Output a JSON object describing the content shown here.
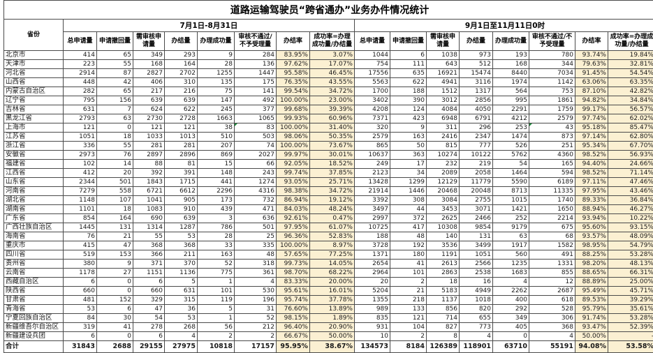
{
  "title": "道路运输驾驶员“跨省通办”业务办件情况统计",
  "province_header": "省份",
  "groups": [
    {
      "label": "7月1日-8月31日"
    },
    {
      "label": "9月1日至11月11日0时"
    }
  ],
  "sub_headers": [
    "总申请量",
    "申请撤回量",
    "需审核申请量",
    "办结量",
    "办理成功量",
    "审核不通过/不予受理量",
    "办结率",
    "成功率=办理成功量/办结量"
  ],
  "rows": [
    {
      "province": "北京市",
      "p1": [
        "414",
        "65",
        "349",
        "293",
        "9",
        "284",
        "83.95%",
        "3.07%"
      ],
      "p2": [
        "1044",
        "6",
        "1038",
        "973",
        "193",
        "780",
        "93.74%",
        "19.84%"
      ]
    },
    {
      "province": "天津市",
      "p1": [
        "223",
        "55",
        "168",
        "164",
        "28",
        "136",
        "97.62%",
        "17.07%"
      ],
      "p2": [
        "754",
        "111",
        "643",
        "512",
        "168",
        "344",
        "79.63%",
        "32.81%"
      ]
    },
    {
      "province": "河北省",
      "p1": [
        "2914",
        "87",
        "2827",
        "2702",
        "1255",
        "1447",
        "95.58%",
        "46.45%"
      ],
      "p2": [
        "17556",
        "635",
        "16921",
        "15474",
        "8440",
        "7034",
        "91.45%",
        "54.54%"
      ]
    },
    {
      "province": "山西省",
      "p1": [
        "448",
        "42",
        "406",
        "310",
        "135",
        "175",
        "76.35%",
        "43.55%"
      ],
      "p2": [
        "5563",
        "622",
        "4941",
        "3116",
        "1974",
        "1142",
        "63.06%",
        "63.35%"
      ]
    },
    {
      "province": "内蒙古自治区",
      "p1": [
        "282",
        "65",
        "217",
        "216",
        "75",
        "141",
        "99.54%",
        "34.72%"
      ],
      "p2": [
        "1700",
        "188",
        "1512",
        "1317",
        "564",
        "753",
        "87.10%",
        "42.82%"
      ]
    },
    {
      "province": "辽宁省",
      "p1": [
        "795",
        "156",
        "639",
        "639",
        "147",
        "492",
        "100.00%",
        "23.00%"
      ],
      "p2": [
        "3402",
        "390",
        "3012",
        "2856",
        "995",
        "1861",
        "94.82%",
        "34.84%"
      ]
    },
    {
      "province": "吉林省",
      "p1": [
        "631",
        "7",
        "624",
        "622",
        "245",
        "377",
        "99.68%",
        "39.39%"
      ],
      "p2": [
        "4208",
        "124",
        "4084",
        "4050",
        "2291",
        "1759",
        "99.17%",
        "56.57%"
      ]
    },
    {
      "province": "黑龙江省",
      "p1": [
        "2793",
        "63",
        "2730",
        "2728",
        "1663",
        "1065",
        "99.93%",
        "60.96%"
      ],
      "p2": [
        "7371",
        "423",
        "6948",
        "6791",
        "4212",
        "2579",
        "97.74%",
        "62.02%"
      ]
    },
    {
      "province": "上海市",
      "p1": [
        "121",
        "0",
        "121",
        "121",
        "38",
        "83",
        "100.00%",
        "31.40%"
      ],
      "p2": [
        "320",
        "9",
        "311",
        "296",
        "253",
        "43",
        "95.18%",
        "85.47%"
      ]
    },
    {
      "province": "江苏省",
      "p1": [
        "1051",
        "18",
        "1033",
        "1013",
        "510",
        "503",
        "98.06%",
        "50.35%"
      ],
      "p2": [
        "2579",
        "163",
        "2416",
        "2347",
        "1474",
        "873",
        "97.14%",
        "62.80%"
      ]
    },
    {
      "province": "浙江省",
      "p1": [
        "336",
        "55",
        "281",
        "281",
        "207",
        "74",
        "100.00%",
        "73.67%"
      ],
      "p2": [
        "865",
        "50",
        "815",
        "777",
        "526",
        "251",
        "95.34%",
        "67.70%"
      ]
    },
    {
      "province": "安徽省",
      "p1": [
        "2973",
        "76",
        "2897",
        "2896",
        "869",
        "2027",
        "99.97%",
        "30.01%"
      ],
      "p2": [
        "10637",
        "363",
        "10274",
        "10122",
        "5762",
        "4360",
        "98.52%",
        "56.93%"
      ]
    },
    {
      "province": "福建省",
      "p1": [
        "102",
        "14",
        "88",
        "81",
        "15",
        "66",
        "92.05%",
        "18.52%"
      ],
      "p2": [
        "249",
        "17",
        "232",
        "219",
        "54",
        "165",
        "94.40%",
        "24.66%"
      ]
    },
    {
      "province": "江西省",
      "p1": [
        "412",
        "20",
        "392",
        "391",
        "148",
        "243",
        "99.74%",
        "37.85%"
      ],
      "p2": [
        "2123",
        "34",
        "2089",
        "2058",
        "1464",
        "594",
        "98.52%",
        "71.14%"
      ]
    },
    {
      "province": "山东省",
      "p1": [
        "2344",
        "501",
        "1843",
        "1715",
        "441",
        "1274",
        "93.05%",
        "25.71%"
      ],
      "p2": [
        "13428",
        "1299",
        "12129",
        "11779",
        "5590",
        "6189",
        "97.11%",
        "47.46%"
      ]
    },
    {
      "province": "河南省",
      "p1": [
        "7279",
        "558",
        "6721",
        "6612",
        "2296",
        "4316",
        "98.38%",
        "34.72%"
      ],
      "p2": [
        "21914",
        "1446",
        "20468",
        "20048",
        "8713",
        "11335",
        "97.95%",
        "43.46%"
      ]
    },
    {
      "province": "湖北省",
      "p1": [
        "1148",
        "107",
        "1041",
        "905",
        "173",
        "732",
        "86.94%",
        "19.12%"
      ],
      "p2": [
        "3392",
        "308",
        "3084",
        "2755",
        "1015",
        "1740",
        "89.33%",
        "36.84%"
      ]
    },
    {
      "province": "湖南省",
      "p1": [
        "1101",
        "18",
        "1083",
        "910",
        "439",
        "471",
        "84.03%",
        "48.24%"
      ],
      "p2": [
        "3497",
        "44",
        "3453",
        "3071",
        "1421",
        "1650",
        "88.94%",
        "46.27%"
      ]
    },
    {
      "province": "广东省",
      "p1": [
        "854",
        "164",
        "690",
        "639",
        "3",
        "636",
        "92.61%",
        "0.47%"
      ],
      "p2": [
        "2997",
        "372",
        "2625",
        "2466",
        "252",
        "2214",
        "93.94%",
        "10.22%"
      ]
    },
    {
      "province": "广西壮族自治区",
      "p1": [
        "1445",
        "131",
        "1314",
        "1287",
        "786",
        "501",
        "97.95%",
        "61.07%"
      ],
      "p2": [
        "10725",
        "417",
        "10308",
        "9854",
        "9179",
        "675",
        "95.60%",
        "93.15%"
      ]
    },
    {
      "province": "海南省",
      "p1": [
        "76",
        "21",
        "55",
        "53",
        "28",
        "25",
        "96.36%",
        "52.83%"
      ],
      "p2": [
        "188",
        "48",
        "140",
        "131",
        "63",
        "68",
        "93.57%",
        "48.09%"
      ]
    },
    {
      "province": "重庆市",
      "p1": [
        "415",
        "47",
        "368",
        "368",
        "33",
        "335",
        "100.00%",
        "8.97%"
      ],
      "p2": [
        "3728",
        "192",
        "3536",
        "3499",
        "1917",
        "1582",
        "98.95%",
        "54.79%"
      ]
    },
    {
      "province": "四川省",
      "p1": [
        "519",
        "153",
        "366",
        "211",
        "163",
        "48",
        "57.65%",
        "77.25%"
      ],
      "p2": [
        "1371",
        "180",
        "1191",
        "1051",
        "560",
        "491",
        "88.25%",
        "53.28%"
      ]
    },
    {
      "province": "贵州省",
      "p1": [
        "380",
        "9",
        "371",
        "370",
        "52",
        "318",
        "99.73%",
        "14.05%"
      ],
      "p2": [
        "2654",
        "41",
        "2613",
        "2566",
        "1235",
        "1331",
        "98.20%",
        "48.13%"
      ]
    },
    {
      "province": "云南省",
      "p1": [
        "1178",
        "27",
        "1151",
        "1136",
        "775",
        "361",
        "98.70%",
        "68.22%"
      ],
      "p2": [
        "2964",
        "101",
        "2863",
        "2538",
        "1683",
        "855",
        "88.65%",
        "66.31%"
      ]
    },
    {
      "province": "西藏自治区",
      "p1": [
        "6",
        "0",
        "6",
        "5",
        "1",
        "4",
        "83.33%",
        "20.00%"
      ],
      "p2": [
        "20",
        "2",
        "18",
        "16",
        "4",
        "12",
        "88.89%",
        "25.00%"
      ]
    },
    {
      "province": "陕西省",
      "p1": [
        "660",
        "0",
        "660",
        "631",
        "101",
        "530",
        "95.61%",
        "16.01%"
      ],
      "p2": [
        "5204",
        "21",
        "5183",
        "4949",
        "2262",
        "2687",
        "95.49%",
        "45.71%"
      ]
    },
    {
      "province": "甘肃省",
      "p1": [
        "481",
        "152",
        "329",
        "315",
        "119",
        "196",
        "95.74%",
        "37.78%"
      ],
      "p2": [
        "1355",
        "218",
        "1137",
        "1018",
        "400",
        "618",
        "89.53%",
        "39.29%"
      ]
    },
    {
      "province": "青海省",
      "p1": [
        "53",
        "6",
        "47",
        "36",
        "5",
        "31",
        "76.60%",
        "13.89%"
      ],
      "p2": [
        "989",
        "133",
        "856",
        "820",
        "292",
        "528",
        "95.79%",
        "35.61%"
      ]
    },
    {
      "province": "宁夏回族自治区",
      "p1": [
        "84",
        "30",
        "54",
        "53",
        "1",
        "52",
        "98.15%",
        "1.89%"
      ],
      "p2": [
        "835",
        "121",
        "714",
        "655",
        "349",
        "306",
        "91.74%",
        "53.28%"
      ]
    },
    {
      "province": "新疆维吾尔自治区",
      "p1": [
        "319",
        "41",
        "278",
        "268",
        "56",
        "212",
        "96.40%",
        "20.90%"
      ],
      "p2": [
        "931",
        "104",
        "827",
        "773",
        "405",
        "368",
        "93.47%",
        "52.39%"
      ]
    },
    {
      "province": "新疆建设兵团",
      "p1": [
        "6",
        "0",
        "6",
        "4",
        "2",
        "2",
        "66.67%",
        "50.00%"
      ],
      "p2": [
        "10",
        "2",
        "8",
        "4",
        "0",
        "4",
        "50.00%",
        "-"
      ]
    }
  ],
  "total": {
    "province": "合计",
    "p1": [
      "31843",
      "2688",
      "29155",
      "27975",
      "10818",
      "17157",
      "95.95%",
      "38.67%"
    ],
    "p2": [
      "134573",
      "8184",
      "126389",
      "118901",
      "63710",
      "55191",
      "94.08%",
      "53.58%"
    ]
  },
  "comment_markers": [
    {
      "row_index": 8,
      "period": "p1",
      "col": 5
    },
    {
      "row_index": 8,
      "period": "p2",
      "col": 5
    }
  ],
  "colors": {
    "rate_column_fill": "#fbf0d2",
    "grid_line": "#4a4a4a",
    "comment_marker_green": "#1e8a3c"
  }
}
